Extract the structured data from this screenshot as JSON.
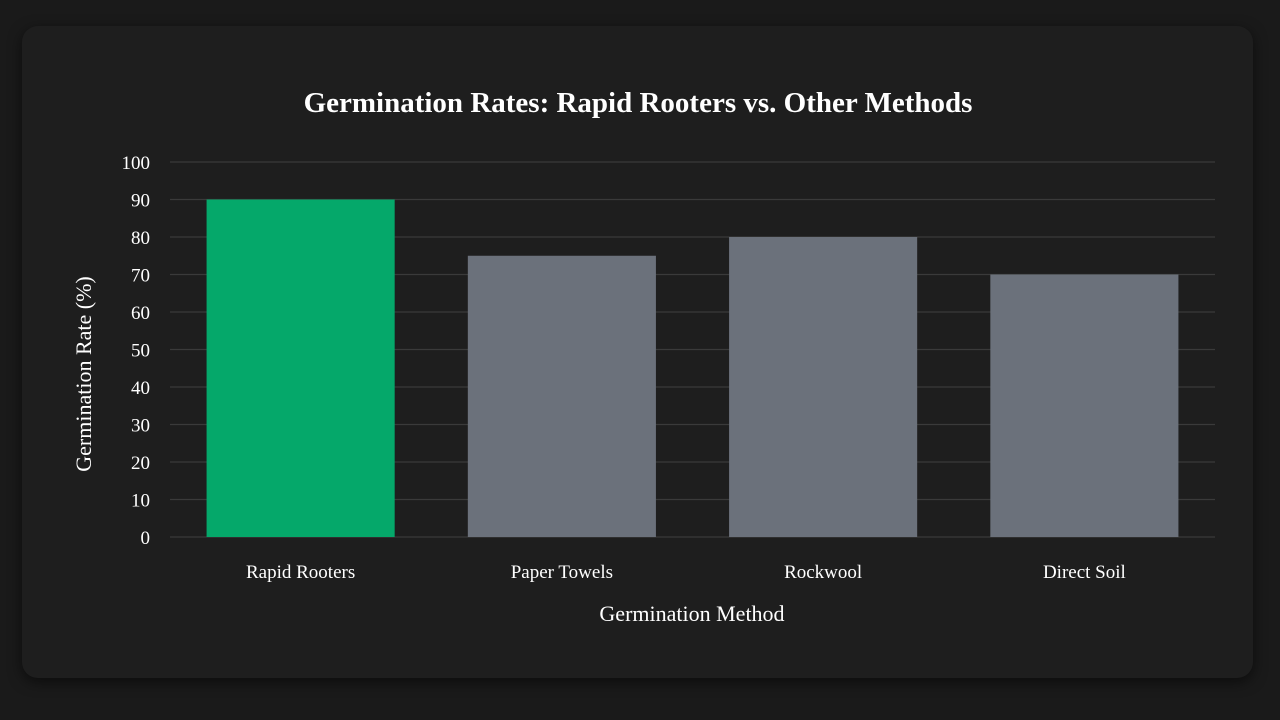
{
  "chart_data": {
    "type": "bar",
    "title": "Germination Rates: Rapid Rooters vs. Other Methods",
    "xlabel": "Germination Method",
    "ylabel": "Germination Rate (%)",
    "categories": [
      "Rapid Rooters",
      "Paper Towels",
      "Rockwool",
      "Direct Soil"
    ],
    "values": [
      90,
      75,
      80,
      70
    ],
    "ylim": [
      0,
      100
    ],
    "yticks": [
      0,
      10,
      20,
      30,
      40,
      50,
      60,
      70,
      80,
      90,
      100
    ],
    "grid": true,
    "legend": "none",
    "colors": [
      "#05a86a",
      "#6b717b",
      "#6b717b",
      "#6b717b"
    ]
  },
  "theme": {
    "background": "#1a1a1a",
    "card": "#1e1e1e",
    "grid": "#3a3a3a",
    "text": "#ffffff"
  }
}
